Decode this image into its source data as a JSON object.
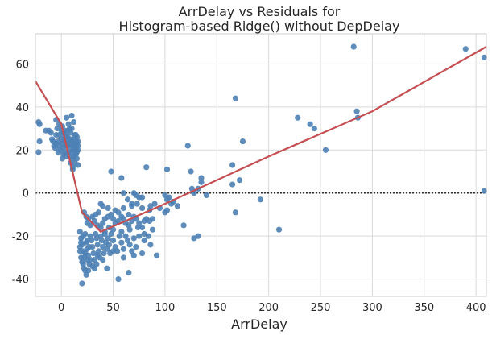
{
  "chart_data": {
    "type": "scatter",
    "title": [
      "ArrDelay vs Residuals for",
      "Histogram-based Ridge() without DepDelay"
    ],
    "xlabel": "ArrDelay",
    "ylabel": "",
    "xlim": [
      -25,
      410
    ],
    "ylim": [
      -48,
      74
    ],
    "xticks": [
      0,
      50,
      100,
      150,
      200,
      250,
      300,
      350,
      400
    ],
    "yticks": [
      -40,
      -20,
      0,
      20,
      40,
      60
    ],
    "grid": true,
    "reference_line_y": 0,
    "colors": {
      "points": "#4c81b5",
      "fit": "#c44e52",
      "grid": "#d9d9d9",
      "axis": "#cccccc"
    },
    "points": [
      [
        -22,
        33
      ],
      [
        -21,
        32
      ],
      [
        -21,
        24
      ],
      [
        -22,
        19
      ],
      [
        -15,
        29
      ],
      [
        -12,
        29
      ],
      [
        -10,
        28
      ],
      [
        -9,
        25
      ],
      [
        -8,
        24
      ],
      [
        -7,
        22
      ],
      [
        -6,
        21
      ],
      [
        -5,
        23
      ],
      [
        -5,
        27
      ],
      [
        -5,
        34
      ],
      [
        -3,
        24
      ],
      [
        -3,
        19
      ],
      [
        -2,
        22
      ],
      [
        -2,
        27
      ],
      [
        -1,
        20
      ],
      [
        0,
        25
      ],
      [
        0,
        29
      ],
      [
        1,
        23
      ],
      [
        1,
        16
      ],
      [
        2,
        21
      ],
      [
        2,
        18
      ],
      [
        3,
        24
      ],
      [
        3,
        29
      ],
      [
        4,
        19
      ],
      [
        4,
        27
      ],
      [
        5,
        23
      ],
      [
        5,
        17
      ],
      [
        6,
        22
      ],
      [
        6,
        29
      ],
      [
        7,
        25
      ],
      [
        7,
        19
      ],
      [
        8,
        23
      ],
      [
        8,
        17
      ],
      [
        9,
        28
      ],
      [
        9,
        21
      ],
      [
        9,
        14
      ],
      [
        10,
        24
      ],
      [
        10,
        19
      ],
      [
        10,
        30
      ],
      [
        11,
        22
      ],
      [
        11,
        16
      ],
      [
        11,
        12
      ],
      [
        12,
        25
      ],
      [
        12,
        20
      ],
      [
        12,
        17
      ],
      [
        13,
        23
      ],
      [
        13,
        27
      ],
      [
        13,
        14
      ],
      [
        14,
        21
      ],
      [
        14,
        18
      ],
      [
        14,
        24
      ],
      [
        15,
        26
      ],
      [
        15,
        16
      ],
      [
        16,
        22
      ],
      [
        16,
        20
      ],
      [
        16,
        13
      ],
      [
        -2,
        32
      ],
      [
        1,
        31
      ],
      [
        3,
        26
      ],
      [
        5,
        35
      ],
      [
        7,
        32
      ],
      [
        9,
        25
      ],
      [
        10,
        36
      ],
      [
        8,
        30
      ],
      [
        6,
        26
      ],
      [
        4,
        22
      ],
      [
        12,
        33
      ],
      [
        14,
        27
      ],
      [
        15,
        23
      ],
      [
        -4,
        30
      ],
      [
        2,
        28
      ],
      [
        11,
        11
      ],
      [
        13,
        21
      ],
      [
        15,
        19
      ],
      [
        16,
        24
      ],
      [
        22,
        -9
      ],
      [
        24,
        -11
      ],
      [
        26,
        -12
      ],
      [
        30,
        -11
      ],
      [
        33,
        -10
      ],
      [
        36,
        -9
      ],
      [
        25,
        -14
      ],
      [
        28,
        -15
      ],
      [
        32,
        -13
      ],
      [
        35,
        -15
      ],
      [
        38,
        -16
      ],
      [
        40,
        -14
      ],
      [
        42,
        -12
      ],
      [
        45,
        -11
      ],
      [
        48,
        -10
      ],
      [
        50,
        -12
      ],
      [
        52,
        -14
      ],
      [
        55,
        -13
      ],
      [
        58,
        -11
      ],
      [
        60,
        -12
      ],
      [
        62,
        -14
      ],
      [
        65,
        -15
      ],
      [
        68,
        -13
      ],
      [
        70,
        -11
      ],
      [
        72,
        -12
      ],
      [
        75,
        -14
      ],
      [
        78,
        -16
      ],
      [
        80,
        -13
      ],
      [
        82,
        -12
      ],
      [
        85,
        -13
      ],
      [
        38,
        -5
      ],
      [
        40,
        -6
      ],
      [
        45,
        -7
      ],
      [
        52,
        -8
      ],
      [
        60,
        -7
      ],
      [
        68,
        -6
      ],
      [
        73,
        -5
      ],
      [
        78,
        -7
      ],
      [
        86,
        -6
      ],
      [
        90,
        -5
      ],
      [
        55,
        -9
      ],
      [
        65,
        -10
      ],
      [
        50,
        -17
      ],
      [
        58,
        -18
      ],
      [
        66,
        -17
      ],
      [
        74,
        -16
      ],
      [
        80,
        -19
      ],
      [
        88,
        -17
      ],
      [
        46,
        -16
      ],
      [
        42,
        -18
      ],
      [
        18,
        -18
      ],
      [
        19,
        -21
      ],
      [
        20,
        -24
      ],
      [
        21,
        -27
      ],
      [
        22,
        -30
      ],
      [
        23,
        -19
      ],
      [
        24,
        -23
      ],
      [
        25,
        -26
      ],
      [
        26,
        -29
      ],
      [
        27,
        -33
      ],
      [
        28,
        -20
      ],
      [
        29,
        -22
      ],
      [
        30,
        -25
      ],
      [
        31,
        -28
      ],
      [
        32,
        -31
      ],
      [
        33,
        -19
      ],
      [
        34,
        -21
      ],
      [
        35,
        -24
      ],
      [
        36,
        -27
      ],
      [
        37,
        -30
      ],
      [
        38,
        -20
      ],
      [
        39,
        -22
      ],
      [
        40,
        -25
      ],
      [
        41,
        -28
      ],
      [
        42,
        -19
      ],
      [
        43,
        -23
      ],
      [
        44,
        -26
      ],
      [
        45,
        -21
      ],
      [
        46,
        -24
      ],
      [
        47,
        -28
      ],
      [
        48,
        -19
      ],
      [
        50,
        -22
      ],
      [
        52,
        -25
      ],
      [
        54,
        -27
      ],
      [
        56,
        -20
      ],
      [
        58,
        -23
      ],
      [
        60,
        -26
      ],
      [
        62,
        -20
      ],
      [
        64,
        -22
      ],
      [
        66,
        -24
      ],
      [
        68,
        -27
      ],
      [
        70,
        -21
      ],
      [
        72,
        -25
      ],
      [
        75,
        -20
      ],
      [
        78,
        -28
      ],
      [
        80,
        -22
      ],
      [
        84,
        -20
      ],
      [
        86,
        -24
      ],
      [
        20,
        -32
      ],
      [
        22,
        -35
      ],
      [
        24,
        -38
      ],
      [
        20,
        -42
      ],
      [
        26,
        -36
      ],
      [
        28,
        -31
      ],
      [
        30,
        -34
      ],
      [
        18,
        -27
      ],
      [
        19,
        -30
      ],
      [
        21,
        -33
      ],
      [
        23,
        -36
      ],
      [
        25,
        -22
      ],
      [
        27,
        -25
      ],
      [
        32,
        -35
      ],
      [
        35,
        -29
      ],
      [
        40,
        -31
      ],
      [
        18,
        -25
      ],
      [
        19,
        -23
      ],
      [
        21,
        -20
      ],
      [
        23,
        -28
      ],
      [
        25,
        -31
      ],
      [
        34,
        -33
      ],
      [
        44,
        -35
      ],
      [
        55,
        -40
      ],
      [
        60,
        -30
      ],
      [
        65,
        -37
      ],
      [
        70,
        -29
      ],
      [
        50,
        -27
      ],
      [
        92,
        -29
      ],
      [
        48,
        10
      ],
      [
        58,
        7
      ],
      [
        70,
        0
      ],
      [
        72,
        -1
      ],
      [
        75,
        -2
      ],
      [
        82,
        12
      ],
      [
        100,
        -1
      ],
      [
        102,
        -3
      ],
      [
        104,
        -2
      ],
      [
        106,
        -5
      ],
      [
        108,
        -4
      ],
      [
        102,
        -8
      ],
      [
        100,
        -9
      ],
      [
        112,
        -6
      ],
      [
        118,
        -15
      ],
      [
        102,
        11
      ],
      [
        122,
        22
      ],
      [
        125,
        10
      ],
      [
        128,
        0
      ],
      [
        132,
        2
      ],
      [
        126,
        2
      ],
      [
        128,
        -21
      ],
      [
        132,
        -20
      ],
      [
        135,
        5
      ],
      [
        135,
        7
      ],
      [
        140,
        -1
      ],
      [
        165,
        4
      ],
      [
        165,
        13
      ],
      [
        168,
        44
      ],
      [
        168,
        -9
      ],
      [
        172,
        6
      ],
      [
        175,
        24
      ],
      [
        192,
        -3
      ],
      [
        210,
        -17
      ],
      [
        228,
        35
      ],
      [
        240,
        32
      ],
      [
        244,
        30
      ],
      [
        255,
        20
      ],
      [
        282,
        68
      ],
      [
        285,
        38
      ],
      [
        286,
        35
      ],
      [
        390,
        67
      ],
      [
        408,
        63
      ],
      [
        408,
        1
      ],
      [
        60,
        0
      ],
      [
        64,
        -3
      ],
      [
        68,
        -5
      ],
      [
        78,
        -2
      ],
      [
        95,
        -7
      ],
      [
        88,
        -12
      ],
      [
        85,
        -8
      ]
    ],
    "fit_line": [
      [
        -25,
        52
      ],
      [
        0,
        32
      ],
      [
        20,
        -9
      ],
      [
        38,
        -18
      ],
      [
        100,
        -5
      ],
      [
        200,
        17
      ],
      [
        300,
        38
      ],
      [
        410,
        68
      ]
    ]
  }
}
